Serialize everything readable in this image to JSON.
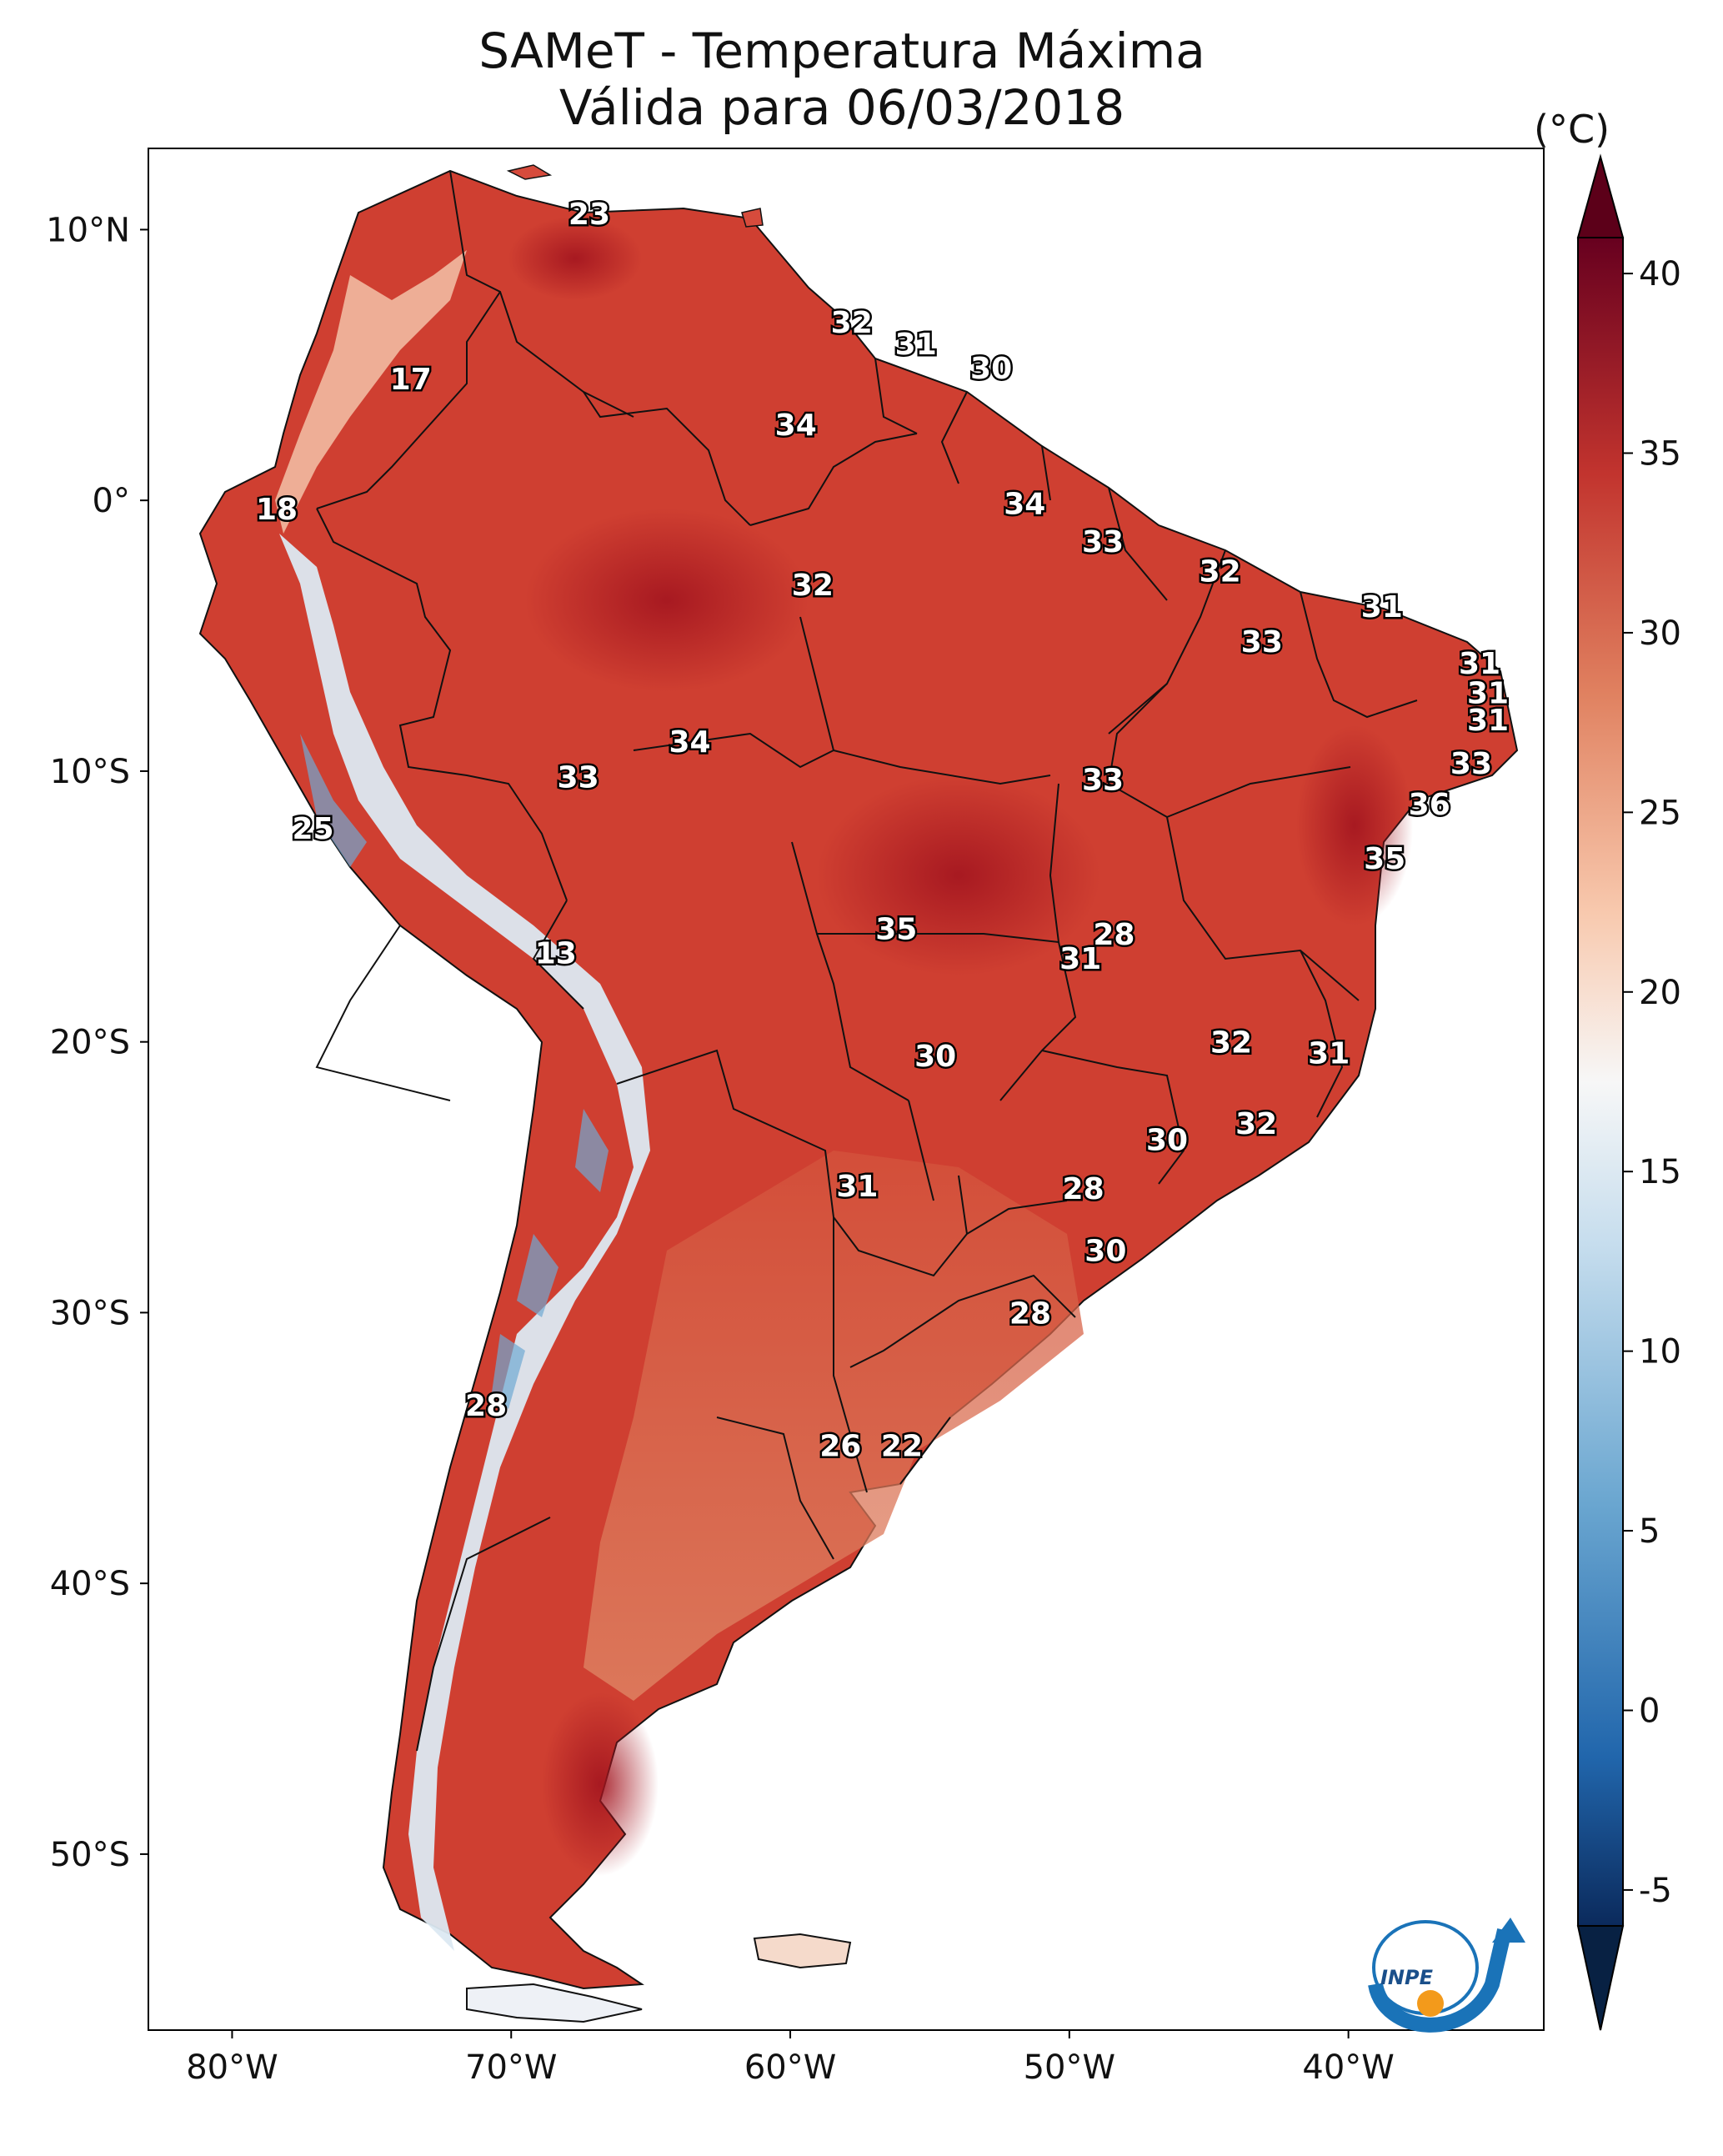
{
  "title_line1": "SAMeT - Temperatura Máxima",
  "title_line2": "Válida para 06/03/2018",
  "unit": "(°C)",
  "lat_labels": [
    "10°N",
    "0°",
    "10°S",
    "20°S",
    "30°S",
    "40°S",
    "50°S"
  ],
  "lon_labels": [
    "80°W",
    "70°W",
    "60°W",
    "50°W",
    "40°W"
  ],
  "colorbar_ticks": [
    "40",
    "35",
    "30",
    "25",
    "20",
    "15",
    "10",
    "5",
    "0",
    "-5"
  ],
  "logo_text": "INPE",
  "point_values": [
    {
      "text": "23",
      "lon": -67.2,
      "lat": 10.6
    },
    {
      "text": "32",
      "lon": -57.8,
      "lat": 6.6
    },
    {
      "text": "31",
      "lon": -55.5,
      "lat": 5.8
    },
    {
      "text": "30",
      "lon": -52.8,
      "lat": 4.9
    },
    {
      "text": "17",
      "lon": -73.6,
      "lat": 4.5
    },
    {
      "text": "34",
      "lon": -59.8,
      "lat": 2.8
    },
    {
      "text": "18",
      "lon": -78.4,
      "lat": -0.3
    },
    {
      "text": "34",
      "lon": -51.6,
      "lat": -0.1
    },
    {
      "text": "33",
      "lon": -48.8,
      "lat": -1.5
    },
    {
      "text": "32",
      "lon": -59.2,
      "lat": -3.1
    },
    {
      "text": "32",
      "lon": -44.6,
      "lat": -2.6
    },
    {
      "text": "31",
      "lon": -38.8,
      "lat": -3.9
    },
    {
      "text": "33",
      "lon": -43.1,
      "lat": -5.2
    },
    {
      "text": "31",
      "lon": -35.3,
      "lat": -6.0
    },
    {
      "text": "31",
      "lon": -35.0,
      "lat": -7.1
    },
    {
      "text": "31",
      "lon": -35.0,
      "lat": -8.1
    },
    {
      "text": "34",
      "lon": -63.6,
      "lat": -8.9
    },
    {
      "text": "33",
      "lon": -35.6,
      "lat": -9.7
    },
    {
      "text": "33",
      "lon": -67.6,
      "lat": -10.2
    },
    {
      "text": "33",
      "lon": -48.8,
      "lat": -10.3
    },
    {
      "text": "36",
      "lon": -37.1,
      "lat": -11.2
    },
    {
      "text": "25",
      "lon": -77.1,
      "lat": -12.1
    },
    {
      "text": "35",
      "lon": -38.7,
      "lat": -13.2
    },
    {
      "text": "35",
      "lon": -56.2,
      "lat": -15.8
    },
    {
      "text": "28",
      "lon": -48.4,
      "lat": -16.0
    },
    {
      "text": "13",
      "lon": -68.4,
      "lat": -16.7
    },
    {
      "text": "31",
      "lon": -49.6,
      "lat": -16.9
    },
    {
      "text": "32",
      "lon": -44.2,
      "lat": -20.0
    },
    {
      "text": "30",
      "lon": -54.8,
      "lat": -20.5
    },
    {
      "text": "31",
      "lon": -40.7,
      "lat": -20.4
    },
    {
      "text": "32",
      "lon": -43.3,
      "lat": -23.0
    },
    {
      "text": "30",
      "lon": -46.5,
      "lat": -23.6
    },
    {
      "text": "31",
      "lon": -57.6,
      "lat": -25.3
    },
    {
      "text": "28",
      "lon": -49.5,
      "lat": -25.4
    },
    {
      "text": "30",
      "lon": -48.7,
      "lat": -27.7
    },
    {
      "text": "28",
      "lon": -51.4,
      "lat": -30.0
    },
    {
      "text": "28",
      "lon": -70.9,
      "lat": -33.4
    },
    {
      "text": "26",
      "lon": -58.2,
      "lat": -34.9
    },
    {
      "text": "22",
      "lon": -56.0,
      "lat": -34.9
    }
  ]
}
